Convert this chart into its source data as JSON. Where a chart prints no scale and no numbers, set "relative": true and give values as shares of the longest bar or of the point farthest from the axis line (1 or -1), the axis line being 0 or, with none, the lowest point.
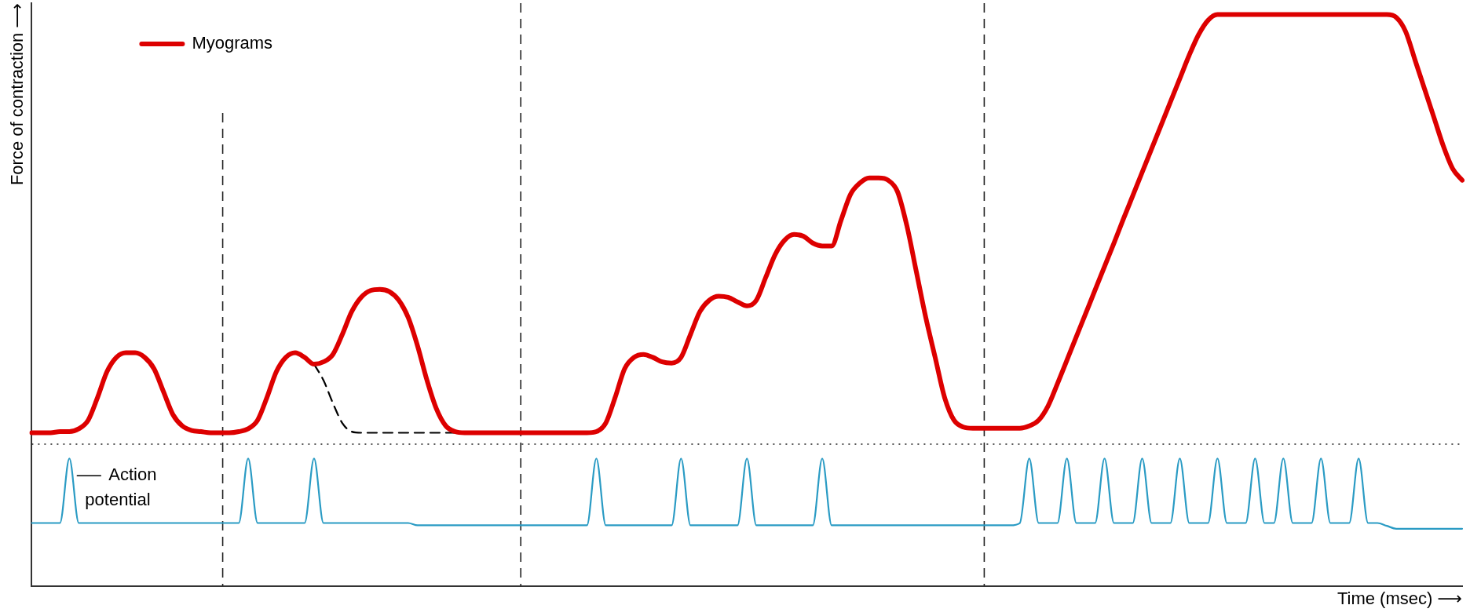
{
  "chart_data": {
    "type": "line",
    "relative": true,
    "xlabel": "Time (msec) ⟶",
    "ylabel": "Force of contraction ⟶",
    "legend": "top left",
    "marker": "none",
    "grid": false,
    "tick_labels": false,
    "categories": [
      null,
      null,
      null,
      null,
      null,
      null,
      null,
      null,
      null,
      null,
      null,
      null,
      null,
      null,
      null,
      null,
      null,
      null,
      null,
      null,
      null,
      null,
      null,
      null,
      null,
      null,
      null,
      null,
      null,
      null,
      null,
      null,
      null,
      null,
      null,
      null,
      null,
      null,
      null,
      null,
      null,
      null,
      null,
      null,
      null,
      null,
      null,
      null,
      null,
      null,
      null,
      null,
      null,
      null,
      null,
      null,
      null,
      null,
      null,
      null,
      null,
      null,
      null,
      null,
      null,
      null,
      null,
      null,
      null,
      null,
      null,
      null,
      null,
      null,
      null,
      null,
      null,
      null,
      null,
      null,
      null,
      null,
      null,
      null,
      null,
      null,
      null,
      null,
      null,
      null,
      null,
      null,
      null,
      null,
      null,
      null,
      null,
      null,
      null,
      null,
      null,
      null,
      null,
      null,
      null,
      null,
      null,
      null,
      null,
      null,
      null,
      null,
      null,
      null,
      null,
      null,
      null,
      null,
      null,
      null,
      null,
      null,
      null,
      null,
      null,
      null,
      null,
      null,
      null,
      null,
      null,
      null,
      null,
      null,
      null,
      null,
      null,
      null,
      null,
      null,
      null,
      null,
      null,
      null,
      null,
      null,
      null,
      null,
      null,
      null,
      null,
      null,
      null
    ],
    "series": [
      {
        "name": "Myograms",
        "color": "#dd0000",
        "line_style": "solid",
        "values": [
          0.268,
          0.268,
          0.268,
          0.27,
          0.27,
          0.275,
          0.29,
          0.33,
          0.375,
          0.4,
          0.408,
          0.408,
          0.4,
          0.38,
          0.34,
          0.3,
          0.28,
          0.272,
          0.27,
          0.268,
          0.268,
          0.268,
          0.27,
          0.275,
          0.29,
          0.33,
          0.375,
          0.4,
          0.408,
          0.4,
          0.388,
          0.392,
          0.405,
          0.44,
          0.48,
          0.505,
          0.517,
          0.519,
          0.515,
          0.5,
          0.47,
          0.42,
          0.36,
          0.31,
          0.28,
          0.27,
          0.268,
          0.268,
          0.268,
          0.268,
          0.268,
          0.268,
          0.268,
          0.268,
          0.268,
          0.268,
          0.268,
          0.268,
          0.268,
          0.268,
          0.27,
          0.285,
          0.33,
          0.38,
          0.4,
          0.405,
          0.4,
          0.392,
          0.39,
          0.4,
          0.44,
          0.48,
          0.5,
          0.507,
          0.505,
          0.497,
          0.49,
          0.5,
          0.54,
          0.58,
          0.605,
          0.615,
          0.612,
          0.6,
          0.595,
          0.595,
          0.64,
          0.685,
          0.705,
          0.714,
          0.714,
          0.71,
          0.69,
          0.63,
          0.55,
          0.47,
          0.4,
          0.33,
          0.29,
          0.278,
          0.276,
          0.276,
          0.276,
          0.276,
          0.276,
          0.276,
          0.28,
          0.29,
          0.315,
          0.354,
          0.395,
          0.436,
          0.477,
          0.518,
          0.559,
          0.6,
          0.642,
          0.683,
          0.724,
          0.765,
          0.806,
          0.847,
          0.888,
          0.929,
          0.965,
          0.99,
          1,
          1,
          1,
          1,
          1,
          1,
          1,
          1,
          1,
          1,
          1,
          1,
          1,
          1,
          1,
          1,
          1,
          1,
          1,
          0.995,
          0.97,
          0.92,
          0.87,
          0.82,
          0.77,
          0.73,
          0.71
        ]
      },
      {
        "color": "#000000",
        "line_style": "dashed",
        "values": [
          null,
          null,
          null,
          null,
          null,
          null,
          null,
          null,
          null,
          null,
          null,
          null,
          null,
          null,
          null,
          null,
          null,
          null,
          null,
          null,
          null,
          null,
          null,
          null,
          null,
          null,
          null,
          null,
          null,
          null,
          0.388,
          0.36,
          0.32,
          0.285,
          0.27,
          0.268,
          0.268,
          0.268,
          0.268,
          0.268,
          0.268,
          0.268,
          0.268,
          0.268,
          0.268,
          0.268,
          null,
          null,
          null,
          null,
          null,
          null,
          null,
          null,
          null,
          null,
          null,
          null,
          null,
          null,
          null,
          null,
          null,
          null,
          null,
          null,
          null,
          null,
          null,
          null,
          null,
          null,
          null,
          null,
          null,
          null,
          null,
          null,
          null,
          null,
          null,
          null,
          null,
          null,
          null,
          null,
          null,
          null,
          null,
          null,
          null,
          null,
          null,
          null,
          null,
          null,
          null,
          null,
          null,
          null,
          null,
          null,
          null,
          null,
          null,
          null,
          null,
          null,
          null,
          null,
          null,
          null,
          null,
          null,
          null,
          null,
          null,
          null,
          null,
          null,
          null,
          null,
          null,
          null,
          null,
          null,
          null,
          null,
          null,
          null,
          null,
          null,
          null,
          null,
          null,
          null,
          null,
          null,
          null,
          null,
          null,
          null,
          null,
          null,
          null,
          null,
          null,
          null,
          null,
          null,
          null,
          null,
          null
        ]
      },
      {
        "name": "Action potential",
        "color": "#2a9bc4",
        "line_style": "solid",
        "values": [
          0.11,
          0.11,
          0.11,
          0.11,
          0.223,
          0.11,
          0.11,
          0.11,
          0.11,
          0.11,
          0.11,
          0.11,
          0.11,
          0.11,
          0.11,
          0.11,
          0.11,
          0.11,
          0.11,
          0.11,
          0.11,
          0.11,
          0.11,
          0.223,
          0.11,
          0.11,
          0.11,
          0.11,
          0.11,
          0.11,
          0.223,
          0.11,
          0.11,
          0.11,
          0.11,
          0.11,
          0.11,
          0.11,
          0.11,
          0.11,
          0.11,
          0.106,
          0.106,
          0.106,
          0.106,
          0.106,
          0.106,
          0.106,
          0.106,
          0.106,
          0.106,
          0.106,
          0.106,
          0.106,
          0.106,
          0.106,
          0.106,
          0.106,
          0.106,
          0.106,
          0.223,
          0.106,
          0.106,
          0.106,
          0.106,
          0.106,
          0.106,
          0.106,
          0.106,
          0.223,
          0.106,
          0.106,
          0.106,
          0.106,
          0.106,
          0.106,
          0.223,
          0.106,
          0.106,
          0.106,
          0.106,
          0.106,
          0.106,
          0.106,
          0.223,
          0.106,
          0.106,
          0.106,
          0.106,
          0.106,
          0.106,
          0.106,
          0.106,
          0.106,
          0.106,
          0.106,
          0.106,
          0.106,
          0.106,
          0.106,
          0.106,
          0.106,
          0.106,
          0.106,
          0.106,
          0.11,
          0.223,
          0.11,
          0.11,
          0.11,
          0.223,
          0.11,
          0.11,
          0.11,
          0.223,
          0.11,
          0.11,
          0.11,
          0.223,
          0.11,
          0.11,
          0.11,
          0.223,
          0.11,
          0.11,
          0.11,
          0.223,
          0.11,
          0.11,
          0.11,
          0.223,
          0.11,
          0.11,
          0.223,
          0.11,
          0.11,
          0.11,
          0.223,
          0.11,
          0.11,
          0.11,
          0.223,
          0.11,
          0.11,
          0.105,
          0.1,
          0.1,
          0.1,
          0.1,
          0.1,
          0.1,
          0.1,
          0.1
        ]
      }
    ],
    "ref_lines": [
      {
        "axis": "y",
        "value": 0.248,
        "line_style": "dotted",
        "color": "#222222"
      }
    ]
  }
}
